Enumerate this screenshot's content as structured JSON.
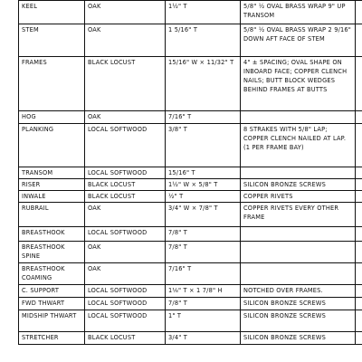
{
  "rows": [
    {
      "part": "KEEL",
      "material": "OAK",
      "size": "1½\" T",
      "notes": "5/8\" ½ OVAL BRASS WRAP 9\" UP TRANSOM"
    },
    {
      "part": "STEM",
      "material": "OAK",
      "size": "1 5/16\" T",
      "notes": "5/8\" ½ OVAL BRASS WRAP 2 9/16\" DOWN AFT FACE OF STEM"
    },
    {
      "part": "FRAMES",
      "material": "BLACK LOCUST",
      "size": "15/16\" W × 11/32\" T",
      "notes": "4\" ± SPACING; OVAL SHAPE ON INBOARD FACE; COPPER CLENCH NAILS; BUTT BLOCK WEDGES BEHIND FRAMES AT BUTTS"
    },
    {
      "part": "HOG",
      "material": "OAK",
      "size": "7/16\" T",
      "notes": ""
    },
    {
      "part": "PLANKING",
      "material": "LOCAL SOFTWOOD",
      "size": "3/8\" T",
      "notes": "8 STRAKES WITH 5/8\" LAP; COPPER CLENCH NAILED AT LAP. (1 PER FRAME BAY)"
    },
    {
      "part": "TRANSOM",
      "material": "LOCAL SOFTWOOD",
      "size": "15/16\" T",
      "notes": ""
    },
    {
      "part": "RISER",
      "material": "BLACK LOCUST",
      "size": "1½\" W × 5/8\" T",
      "notes": "SILICON BRONZE SCREWS"
    },
    {
      "part": "INWALE",
      "material": "BLACK LOCUST",
      "size": "½\" T",
      "notes": "COPPER RIVETS"
    },
    {
      "part": "RUBRAIL",
      "material": "OAK",
      "size": "3/4\" W × 7/8\" T",
      "notes": "COPPER RIVETS EVERY OTHER FRAME"
    },
    {
      "part": "BREASTHOOK",
      "material": "LOCAL SOFTWOOD",
      "size": "7/8\" T",
      "notes": ""
    },
    {
      "part": "BREASTHOOK SPINE",
      "material": "OAK",
      "size": "7/8\" T",
      "notes": ""
    },
    {
      "part": "BREASTHOOK COAMING",
      "material": "OAK",
      "size": "7/16\" T",
      "notes": ""
    },
    {
      "part": "C. SUPPORT",
      "material": "LOCAL SOFTWOOD",
      "size": "1⅛\" T × 1 7/8\" H",
      "notes": "NOTCHED OVER FRAMES."
    },
    {
      "part": "FWD THWART",
      "material": "LOCAL SOFTWOOD",
      "size": "7/8\" T",
      "notes": "SILICON BRONZE SCREWS"
    },
    {
      "part": "MIDSHIP THWART",
      "material": "LOCAL SOFTWOOD",
      "size": "1\" T",
      "notes": "SILICON BRONZE SCREWS"
    },
    {
      "part": "STRETCHER",
      "material": "BLACK LOCUST",
      "size": "3/4\" T",
      "notes": "SILICON BRONZE SCREWS"
    }
  ]
}
